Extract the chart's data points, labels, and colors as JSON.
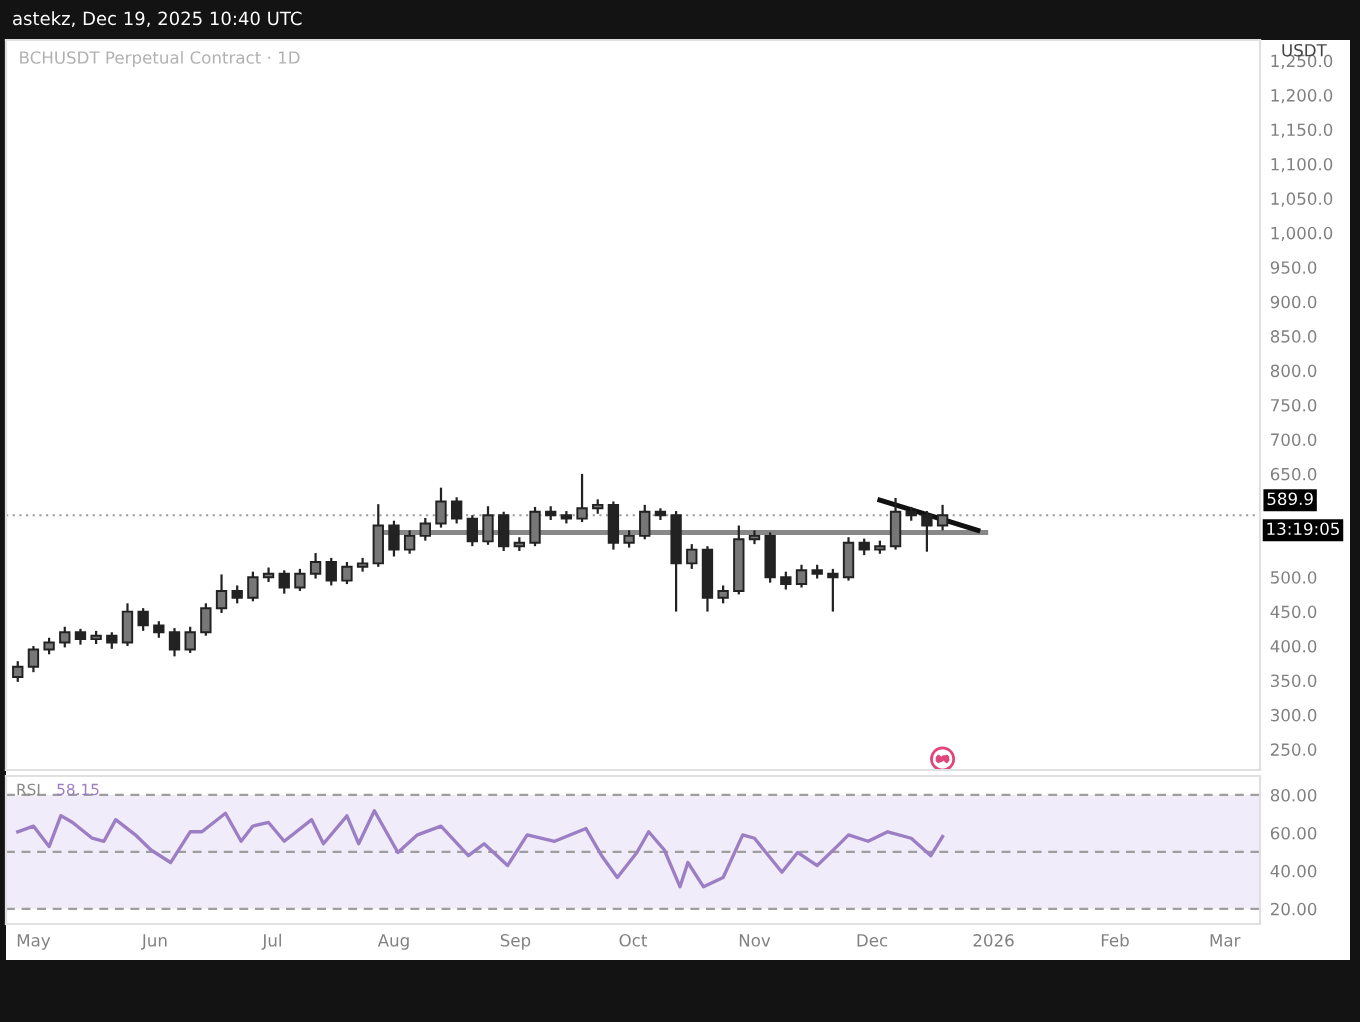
{
  "chart_data": [
    {
      "type": "candlestick",
      "title": "BCHUSDT Perpetual Contract · 1D",
      "subtitle": "astekz, Dec 19, 2025 10:40 UTC",
      "ylabel": "USDT",
      "color": "#222222",
      "x": [
        "2025-04-27",
        "2025-05-01",
        "2025-05-05",
        "2025-05-09",
        "2025-05-13",
        "2025-05-17",
        "2025-05-21",
        "2025-05-25",
        "2025-05-29",
        "2025-06-02",
        "2025-06-06",
        "2025-06-10",
        "2025-06-14",
        "2025-06-18",
        "2025-06-22",
        "2025-06-26",
        "2025-06-30",
        "2025-07-04",
        "2025-07-08",
        "2025-07-12",
        "2025-07-16",
        "2025-07-20",
        "2025-07-24",
        "2025-07-28",
        "2025-08-01",
        "2025-08-05",
        "2025-08-09",
        "2025-08-13",
        "2025-08-17",
        "2025-08-21",
        "2025-08-25",
        "2025-08-29",
        "2025-09-02",
        "2025-09-06",
        "2025-09-10",
        "2025-09-14",
        "2025-09-18",
        "2025-09-22",
        "2025-09-26",
        "2025-09-30",
        "2025-10-04",
        "2025-10-08",
        "2025-10-12",
        "2025-10-16",
        "2025-10-20",
        "2025-10-24",
        "2025-10-28",
        "2025-11-01",
        "2025-11-05",
        "2025-11-09",
        "2025-11-13",
        "2025-11-17",
        "2025-11-21",
        "2025-11-25",
        "2025-11-29",
        "2025-12-03",
        "2025-12-07",
        "2025-12-11",
        "2025-12-15",
        "2025-12-19"
      ],
      "ohlc": [
        [
          355,
          378,
          348,
          370
        ],
        [
          370,
          400,
          362,
          395
        ],
        [
          395,
          412,
          388,
          405
        ],
        [
          405,
          428,
          398,
          420
        ],
        [
          420,
          425,
          402,
          410
        ],
        [
          410,
          422,
          403,
          415
        ],
        [
          415,
          420,
          396,
          405
        ],
        [
          405,
          462,
          400,
          450
        ],
        [
          450,
          455,
          422,
          430
        ],
        [
          430,
          436,
          412,
          420
        ],
        [
          420,
          426,
          385,
          395
        ],
        [
          395,
          428,
          390,
          420
        ],
        [
          420,
          462,
          415,
          455
        ],
        [
          455,
          504,
          448,
          480
        ],
        [
          480,
          488,
          462,
          470
        ],
        [
          470,
          508,
          465,
          500
        ],
        [
          500,
          514,
          493,
          505
        ],
        [
          505,
          510,
          476,
          485
        ],
        [
          485,
          512,
          480,
          505
        ],
        [
          505,
          535,
          498,
          522
        ],
        [
          522,
          528,
          488,
          495
        ],
        [
          495,
          522,
          490,
          515
        ],
        [
          515,
          528,
          508,
          520
        ],
        [
          520,
          606,
          515,
          575
        ],
        [
          575,
          582,
          530,
          540
        ],
        [
          540,
          568,
          534,
          560
        ],
        [
          560,
          586,
          553,
          578
        ],
        [
          578,
          630,
          572,
          610
        ],
        [
          610,
          616,
          578,
          585
        ],
        [
          585,
          590,
          545,
          552
        ],
        [
          552,
          603,
          547,
          590
        ],
        [
          590,
          595,
          538,
          545
        ],
        [
          545,
          558,
          538,
          550
        ],
        [
          550,
          602,
          545,
          595
        ],
        [
          595,
          603,
          583,
          590
        ],
        [
          590,
          596,
          578,
          585
        ],
        [
          585,
          650,
          580,
          600
        ],
        [
          600,
          613,
          592,
          605
        ],
        [
          605,
          610,
          540,
          550
        ],
        [
          550,
          568,
          543,
          560
        ],
        [
          560,
          605,
          555,
          595
        ],
        [
          595,
          600,
          583,
          590
        ],
        [
          590,
          596,
          450,
          520
        ],
        [
          520,
          548,
          512,
          540
        ],
        [
          540,
          545,
          450,
          470
        ],
        [
          470,
          488,
          462,
          480
        ],
        [
          480,
          575,
          475,
          555
        ],
        [
          555,
          568,
          548,
          560
        ],
        [
          560,
          565,
          492,
          500
        ],
        [
          500,
          508,
          482,
          490
        ],
        [
          490,
          518,
          485,
          510
        ],
        [
          510,
          518,
          498,
          505
        ],
        [
          505,
          512,
          450,
          500
        ],
        [
          500,
          558,
          495,
          550
        ],
        [
          550,
          556,
          532,
          540
        ],
        [
          540,
          553,
          534,
          545
        ],
        [
          545,
          615,
          540,
          595
        ],
        [
          595,
          602,
          582,
          590
        ],
        [
          590,
          596,
          537,
          575
        ],
        [
          575,
          605,
          568,
          589.9
        ]
      ],
      "series": [
        {
          "type": "line",
          "color": "#888888",
          "x": [
            "2025-07-28",
            "2025-12-30"
          ],
          "values": [
            565,
            565
          ]
        },
        {
          "type": "line",
          "color": "#111111",
          "x": [
            "2025-12-03",
            "2025-12-28"
          ],
          "values": [
            612,
            568
          ]
        }
      ],
      "ref_lines": [
        {
          "axis": "y",
          "value": 589.9,
          "label": "589.9",
          "color": "#9e9e9e",
          "line_style": "dotted"
        }
      ],
      "annotations": [
        {
          "text": "13:19:05",
          "x": "2026-03-10",
          "y": 589.9
        }
      ],
      "xlim": [
        "2025-04-24",
        "2026-03-10"
      ],
      "ylim": [
        220,
        1280
      ],
      "yticks": [
        {
          "value": 250,
          "label": "250.0"
        },
        {
          "value": 300,
          "label": "300.0"
        },
        {
          "value": 350,
          "label": "350.0"
        },
        {
          "value": 400,
          "label": "400.0"
        },
        {
          "value": 450,
          "label": "450.0"
        },
        {
          "value": 500,
          "label": "500.0"
        },
        {
          "value": 650,
          "label": "650.0"
        },
        {
          "value": 700,
          "label": "700.0"
        },
        {
          "value": 750,
          "label": "750.0"
        },
        {
          "value": 800,
          "label": "800.0"
        },
        {
          "value": 850,
          "label": "850.0"
        },
        {
          "value": 900,
          "label": "900.0"
        },
        {
          "value": 950,
          "label": "950.0"
        },
        {
          "value": 1000,
          "label": "1,000.0"
        },
        {
          "value": 1050,
          "label": "1,050.0"
        },
        {
          "value": 1100,
          "label": "1,100.0"
        },
        {
          "value": 1150,
          "label": "1,150.0"
        },
        {
          "value": 1200,
          "label": "1,200.0"
        },
        {
          "value": 1250,
          "label": "1,250.0"
        }
      ],
      "tick_labels": "y",
      "grid": false
    },
    {
      "type": "line",
      "annotations": [
        "58.15"
      ],
      "series": [
        {
          "name": "RSI",
          "color": "#9c7ec4",
          "x": [
            "2025-04-27",
            "2025-05-01",
            "2025-05-05",
            "2025-05-08",
            "2025-05-11",
            "2025-05-16",
            "2025-05-19",
            "2025-05-22",
            "2025-05-27",
            "2025-05-31",
            "2025-06-05",
            "2025-06-10",
            "2025-06-13",
            "2025-06-16",
            "2025-06-19",
            "2025-06-23",
            "2025-06-26",
            "2025-06-30",
            "2025-07-04",
            "2025-07-11",
            "2025-07-14",
            "2025-07-20",
            "2025-07-23",
            "2025-07-27",
            "2025-08-02",
            "2025-08-07",
            "2025-08-13",
            "2025-08-20",
            "2025-08-24",
            "2025-08-30",
            "2025-09-04",
            "2025-09-11",
            "2025-09-19",
            "2025-09-23",
            "2025-09-27",
            "2025-10-02",
            "2025-10-05",
            "2025-10-09",
            "2025-10-13",
            "2025-10-15",
            "2025-10-19",
            "2025-10-24",
            "2025-10-29",
            "2025-11-01",
            "2025-11-08",
            "2025-11-12",
            "2025-11-17",
            "2025-11-22",
            "2025-11-25",
            "2025-11-30",
            "2025-12-05",
            "2025-12-11",
            "2025-12-16",
            "2025-12-19"
          ],
          "values": [
            60.6,
            63.6,
            52.8,
            69.1,
            65.5,
            57.2,
            55.6,
            67,
            59,
            51,
            44.4,
            60.6,
            60.6,
            65.5,
            70.4,
            55.6,
            63.6,
            65.5,
            55.6,
            67,
            54.3,
            69,
            54.3,
            71.7,
            49.7,
            59,
            63.6,
            48,
            54.3,
            42.8,
            59,
            55.6,
            62.3,
            48,
            36.5,
            49.7,
            60.6,
            51,
            31.6,
            44.4,
            31.6,
            36.5,
            59,
            57.2,
            39.3,
            49.7,
            42.8,
            52.8,
            59,
            55.6,
            60.6,
            57.2,
            48,
            58.15
          ]
        }
      ],
      "bands": [
        {
          "axis": "y",
          "from": 20,
          "to": 80,
          "color": "#f1ecf9"
        }
      ],
      "ref_lines": [
        {
          "axis": "y",
          "value": 80,
          "color": "#9e9e9e",
          "line_style": "dashed"
        },
        {
          "axis": "y",
          "value": 50,
          "color": "#9e9e9e",
          "line_style": "dashed"
        },
        {
          "axis": "y",
          "value": 20,
          "color": "#9e9e9e",
          "line_style": "dashed"
        }
      ],
      "xlim": [
        "2025-04-24",
        "2026-03-10"
      ],
      "ylim": [
        12,
        90
      ],
      "xticks": [
        {
          "value": "2025-05-01",
          "label": "May"
        },
        {
          "value": "2025-06-01",
          "label": "Jun"
        },
        {
          "value": "2025-07-01",
          "label": "Jul"
        },
        {
          "value": "2025-08-01",
          "label": "Aug"
        },
        {
          "value": "2025-09-01",
          "label": "Sep"
        },
        {
          "value": "2025-10-01",
          "label": "Oct"
        },
        {
          "value": "2025-11-01",
          "label": "Nov"
        },
        {
          "value": "2025-12-01",
          "label": "Dec"
        },
        {
          "value": "2026-01-01",
          "label": "2026"
        },
        {
          "value": "2026-02-01",
          "label": "Feb"
        },
        {
          "value": "2026-03-01",
          "label": "Mar"
        }
      ],
      "yticks": [
        {
          "value": 80,
          "label": "80.00"
        },
        {
          "value": 60,
          "label": "60.00"
        },
        {
          "value": 40,
          "label": "40.00"
        },
        {
          "value": 20,
          "label": "20.00"
        }
      ],
      "grid": false
    }
  ]
}
